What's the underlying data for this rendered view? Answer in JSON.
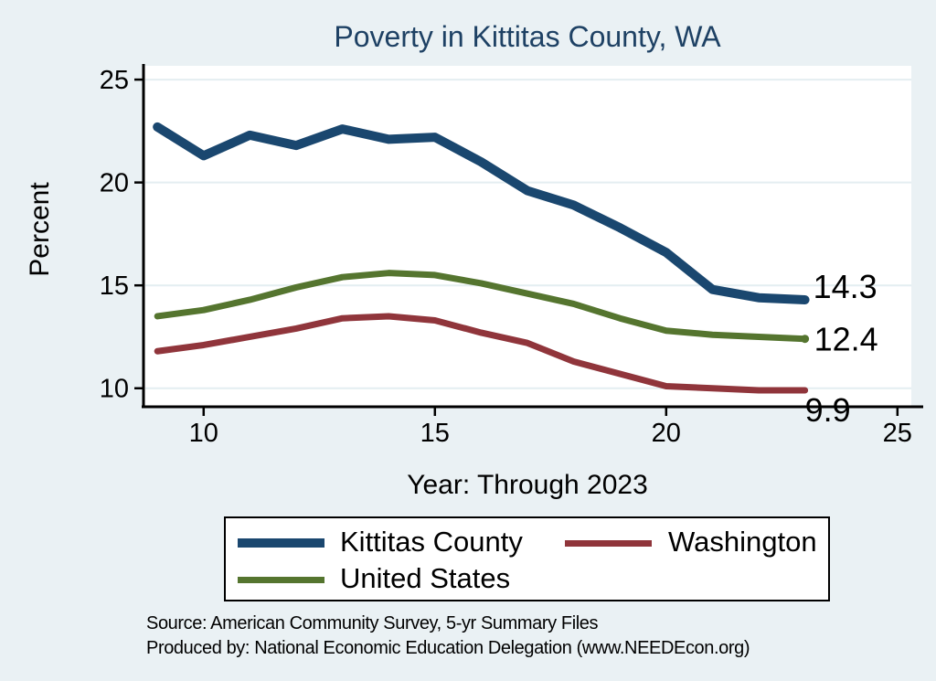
{
  "title": "Poverty in Kittitas County, WA",
  "colors": {
    "background": "#EAF1F4",
    "plot_background": "#FFFFFF",
    "gridline": "#E4EEF1",
    "axis": "#000000",
    "title_color": "#1E4164",
    "navy": "#1A476F",
    "maroon": "#90353B",
    "green": "#55752F"
  },
  "chart_data": {
    "type": "line",
    "title": "Poverty in Kittitas County, WA",
    "xlabel": "Year: Through 2023",
    "ylabel": "Percent",
    "x": [
      9,
      10,
      11,
      12,
      13,
      14,
      15,
      16,
      17,
      18,
      19,
      20,
      21,
      22,
      23
    ],
    "series": [
      {
        "name": "Kittitas County",
        "color_key": "navy",
        "line_width": 10,
        "values": [
          22.7,
          21.3,
          22.3,
          21.8,
          22.6,
          22.1,
          22.2,
          21.0,
          19.6,
          18.9,
          17.8,
          16.6,
          14.8,
          14.4,
          14.3
        ],
        "end_label": "14.3",
        "end_marker": false
      },
      {
        "name": "Washington",
        "color_key": "maroon",
        "line_width": 7,
        "values": [
          11.8,
          12.1,
          12.5,
          12.9,
          13.4,
          13.5,
          13.3,
          12.7,
          12.2,
          11.3,
          10.7,
          10.1,
          10.0,
          9.9,
          9.9
        ],
        "end_label": "9.9",
        "end_marker": false
      },
      {
        "name": "United States",
        "color_key": "green",
        "line_width": 7,
        "values": [
          13.5,
          13.8,
          14.3,
          14.9,
          15.4,
          15.6,
          15.5,
          15.1,
          14.6,
          14.1,
          13.4,
          12.8,
          12.6,
          12.5,
          12.4
        ],
        "end_label": "12.4",
        "end_marker": true
      }
    ],
    "x_ticks": [
      10,
      15,
      20,
      25
    ],
    "y_ticks": [
      10,
      15,
      20,
      25
    ],
    "xlim": [
      8.7,
      25.3
    ],
    "ylim": [
      9.1,
      25.67
    ],
    "grid": "horizontal",
    "legend_position": "bottom"
  },
  "source": {
    "line1": "Source: American Community Survey, 5-yr Summary Files",
    "line2": "Produced by: National Economic Education Delegation (www.NEEDEcon.org)"
  }
}
